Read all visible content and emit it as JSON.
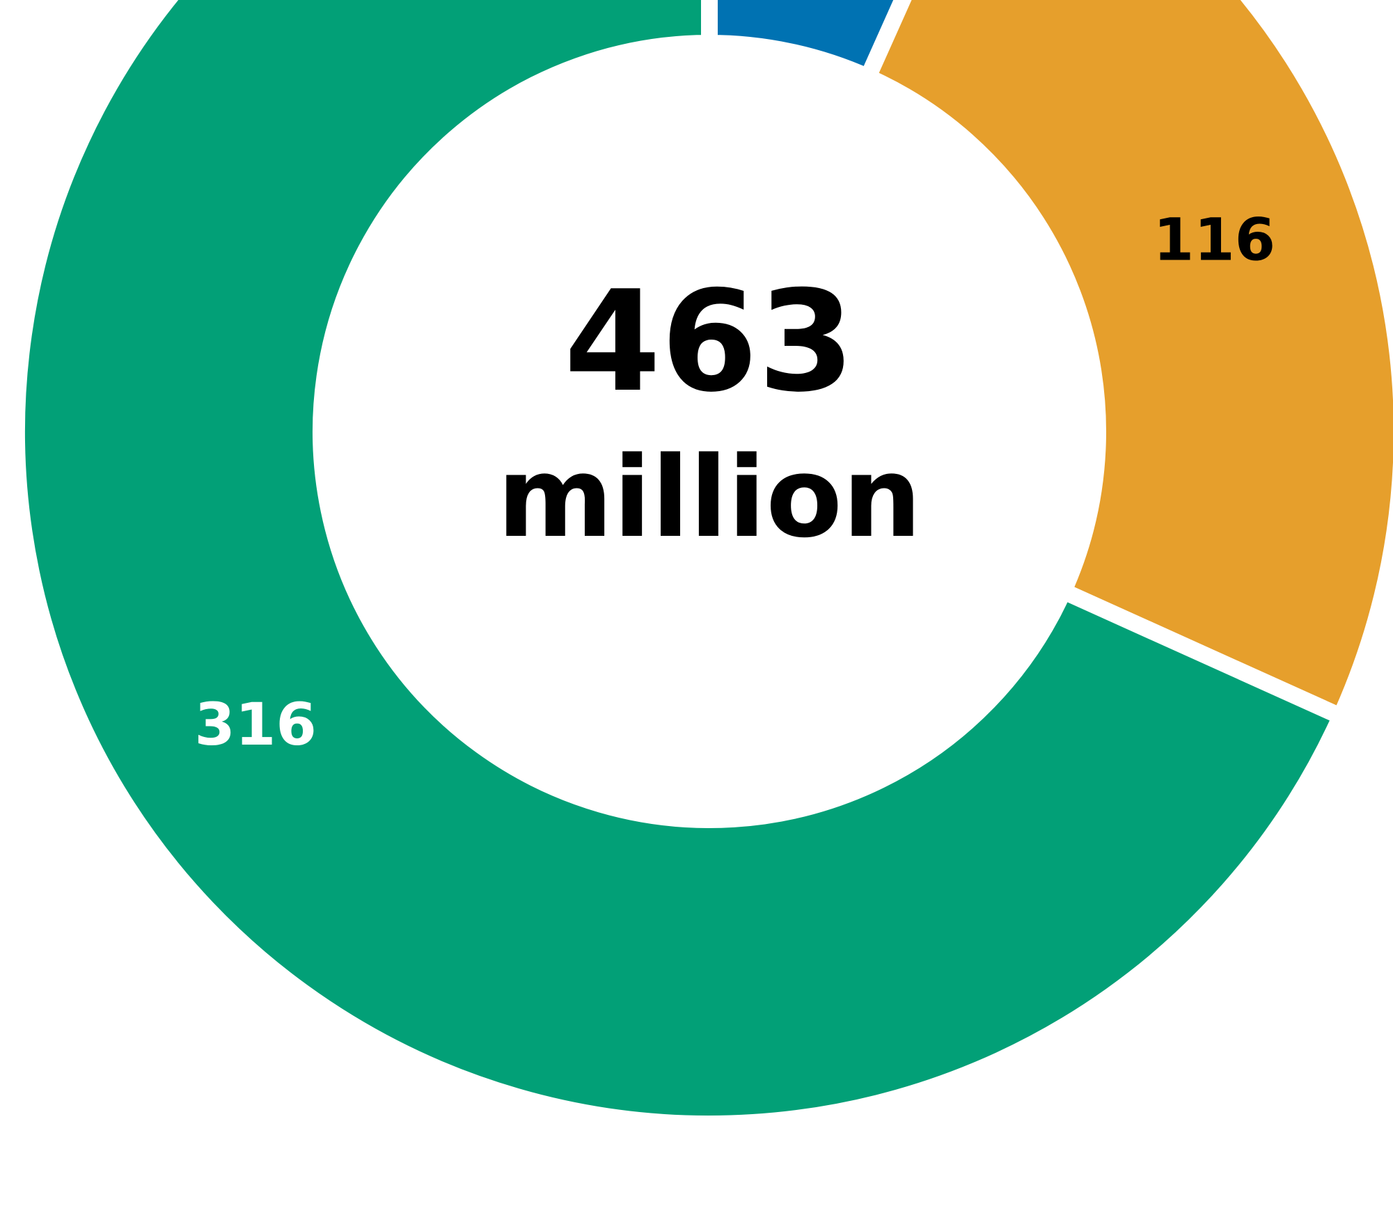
{
  "chart_data": {
    "type": "pie",
    "donut": true,
    "center_value": "463",
    "center_unit": "million",
    "slices": [
      {
        "label": "",
        "value": 31,
        "value_label": "",
        "color": "#0072B2",
        "label_color": "#FFFFFF"
      },
      {
        "label": "",
        "value": 116,
        "value_label": "116",
        "color": "#E69F2C",
        "label_color": "#000000"
      },
      {
        "label": "",
        "value": 316,
        "value_label": "316",
        "color": "#02A077",
        "label_color": "#FFFFFF"
      }
    ],
    "start_angle_deg": 0,
    "direction": "clockwise",
    "legend": "none"
  }
}
